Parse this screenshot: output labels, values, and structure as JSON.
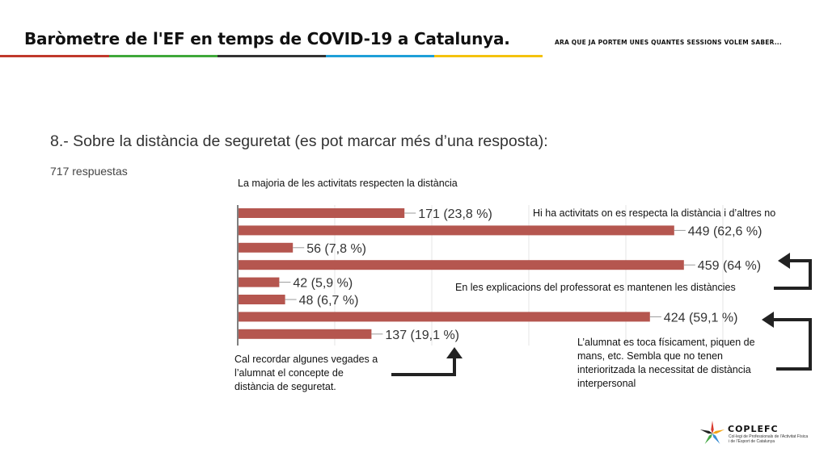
{
  "header": {
    "title": "Baròmetre de l'EF en temps de COVID-19 a Catalunya.",
    "subtitle": "ARA QUE JA PORTEM UNES QUANTES SESSIONS VOLEM SABER...",
    "stripe_colors": [
      "#c0392b",
      "#3fa83a",
      "#333333",
      "#1e9fd8",
      "#f4c20d",
      "#ffffff"
    ]
  },
  "question": "8.- Sobre la distància de seguretat (es pot marcar més d’una resposta):",
  "responses_label": "717 respuestas",
  "annotations": {
    "majority": "La majoria de les activitats respecten la distància",
    "mixed": "Hi ha activitats on es respecta la distància i d’altres no",
    "explanations": "En les explicacions del professorat es mantenen les distàncies",
    "reminder": "Cal recordar algunes vegades a l’alumnat el concepte de distància de seguretat.",
    "touching": "L’alumnat es toca físicament, piquen de mans, etc. Sembla que no tenen interioritzada la necessitat de distància interpersonal"
  },
  "chart_data": {
    "type": "bar",
    "orientation": "horizontal",
    "values": [
      171,
      449,
      56,
      459,
      42,
      48,
      424,
      137
    ],
    "data_labels": [
      "171 (23,8 %)",
      "449 (62,6 %)",
      "56 (7,8 %)",
      "459 (64 %)",
      "42 (5,9 %)",
      "48 (6,7 %)",
      "424 (59,1 %)",
      "137 (19,1 %)"
    ],
    "xlim": [
      0,
      500
    ],
    "grid": true,
    "bar_color": "#b5564f"
  },
  "logo": {
    "name": "COPLEFC",
    "subtitle": "Col·legi de Professionals de l’Activitat Física i de l’Esport de Catalunya",
    "colors": [
      "#d83a2e",
      "#f2a516",
      "#3a8fd3",
      "#45a845",
      "#222222"
    ]
  }
}
